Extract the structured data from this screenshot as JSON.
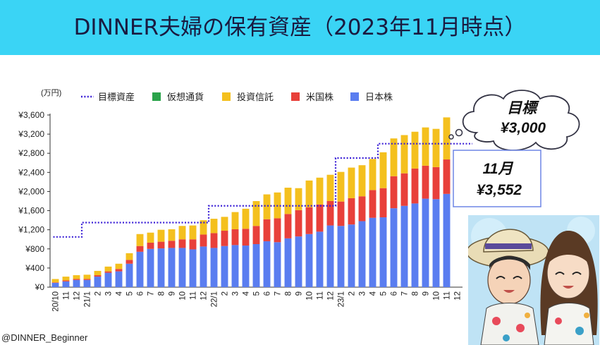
{
  "title": "DINNER夫婦の保有資産（2023年11月時点）",
  "credit": "@DINNER_Beginner",
  "callout_goal": {
    "label": "目標",
    "value": "¥3,000"
  },
  "callout_current": {
    "label": "11月",
    "value": "¥3,552"
  },
  "colors": {
    "header": "#3ad4f5",
    "goal": "#3a1fd6",
    "crypto": "#2aa34a",
    "trust": "#f4c01e",
    "us": "#e8403a",
    "jp": "#5a7df0"
  },
  "chart_data": {
    "type": "bar",
    "stacked": true,
    "unit_label": "(万円)",
    "ylim": [
      0,
      3600
    ],
    "yticks": [
      0,
      400,
      800,
      1200,
      1600,
      2000,
      2400,
      2800,
      3200,
      3600
    ],
    "ytick_labels": [
      "¥0",
      "¥400",
      "¥800",
      "¥1,200",
      "¥1,600",
      "¥2,000",
      "¥2,400",
      "¥2,800",
      "¥3,200",
      "¥3,600"
    ],
    "categories": [
      "20/10",
      "11",
      "12",
      "21/1",
      "2",
      "3",
      "4",
      "5",
      "6",
      "7",
      "8",
      "9",
      "10",
      "11",
      "12",
      "22/1",
      "2",
      "3",
      "4",
      "5",
      "6",
      "7",
      "8",
      "9",
      "10",
      "11",
      "12",
      "23/1",
      "2",
      "3",
      "4",
      "5",
      "6",
      "7",
      "8",
      "9",
      "10",
      "11",
      "12"
    ],
    "series": [
      {
        "name": "日本株",
        "values": [
          90,
          120,
          150,
          150,
          220,
          300,
          330,
          490,
          740,
          800,
          810,
          820,
          820,
          790,
          850,
          820,
          860,
          880,
          870,
          900,
          960,
          940,
          1020,
          1060,
          1110,
          1160,
          1290,
          1280,
          1310,
          1380,
          1450,
          1460,
          1650,
          1700,
          1750,
          1850,
          1840,
          1950,
          null
        ]
      },
      {
        "name": "米国株",
        "values": [
          10,
          20,
          20,
          20,
          30,
          30,
          50,
          80,
          120,
          130,
          140,
          150,
          180,
          210,
          250,
          310,
          320,
          330,
          350,
          380,
          460,
          500,
          510,
          550,
          560,
          570,
          510,
          510,
          550,
          520,
          580,
          610,
          670,
          680,
          730,
          690,
          670,
          720,
          null
        ]
      },
      {
        "name": "投資信託",
        "values": [
          70,
          80,
          80,
          90,
          90,
          100,
          110,
          140,
          250,
          210,
          250,
          240,
          280,
          290,
          300,
          300,
          290,
          360,
          420,
          520,
          520,
          540,
          550,
          460,
          560,
          560,
          550,
          620,
          640,
          650,
          650,
          750,
          790,
          800,
          770,
          800,
          800,
          880,
          null
        ]
      },
      {
        "name": "仮想通貨",
        "values": [
          0,
          0,
          0,
          0,
          0,
          0,
          0,
          0,
          0,
          0,
          0,
          0,
          0,
          0,
          0,
          0,
          0,
          0,
          0,
          0,
          0,
          0,
          0,
          0,
          0,
          0,
          0,
          0,
          0,
          0,
          0,
          0,
          0,
          0,
          0,
          0,
          0,
          0,
          null
        ]
      }
    ],
    "goal": {
      "name": "目標資産",
      "values": [
        1050,
        1050,
        1050,
        1350,
        1350,
        1350,
        1350,
        1350,
        1350,
        1350,
        1350,
        1350,
        1350,
        1350,
        1350,
        1700,
        1700,
        1700,
        1700,
        1700,
        1700,
        1700,
        1700,
        1700,
        1700,
        1700,
        1700,
        2700,
        2700,
        2700,
        2700,
        3000,
        3000,
        3000,
        3000,
        3000,
        3000,
        3000,
        3000
      ]
    },
    "legend": [
      "目標資産",
      "仮想通貨",
      "投資信託",
      "米国株",
      "日本株"
    ],
    "legend_position": "top"
  }
}
